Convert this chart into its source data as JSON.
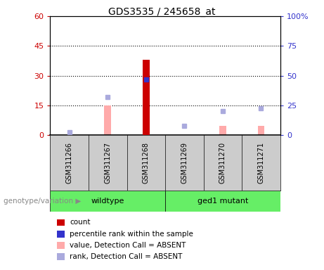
{
  "title": "GDS3535 / 245658_at",
  "samples": [
    "GSM311266",
    "GSM311267",
    "GSM311268",
    "GSM311269",
    "GSM311270",
    "GSM311271"
  ],
  "count_values": [
    null,
    null,
    38.0,
    null,
    null,
    null
  ],
  "percentile_rank": [
    null,
    null,
    47.0,
    null,
    null,
    null
  ],
  "absent_value": [
    null,
    15.0,
    null,
    null,
    4.5,
    4.5
  ],
  "absent_rank": [
    1.5,
    19.0,
    null,
    4.5,
    12.0,
    13.5
  ],
  "ylim_left": [
    0,
    60
  ],
  "ylim_right": [
    0,
    100
  ],
  "yticks_left": [
    0,
    15,
    30,
    45,
    60
  ],
  "yticks_right": [
    0,
    25,
    50,
    75,
    100
  ],
  "ytick_labels_left": [
    "0",
    "15",
    "30",
    "45",
    "60"
  ],
  "ytick_labels_right": [
    "0",
    "25",
    "50",
    "75",
    "100%"
  ],
  "color_count": "#cc0000",
  "color_rank": "#3333cc",
  "color_absent_value": "#ffaaaa",
  "color_absent_rank": "#aaaadd",
  "bar_width": 0.3,
  "wildtype_color": "#66ee66",
  "mutant_color": "#66ee66",
  "sample_bg": "#cccccc",
  "group_bar_color": "#55dd55",
  "legend_items": [
    {
      "color": "#cc0000",
      "label": "count"
    },
    {
      "color": "#3333cc",
      "label": "percentile rank within the sample"
    },
    {
      "color": "#ffaaaa",
      "label": "value, Detection Call = ABSENT"
    },
    {
      "color": "#aaaadd",
      "label": "rank, Detection Call = ABSENT"
    }
  ]
}
